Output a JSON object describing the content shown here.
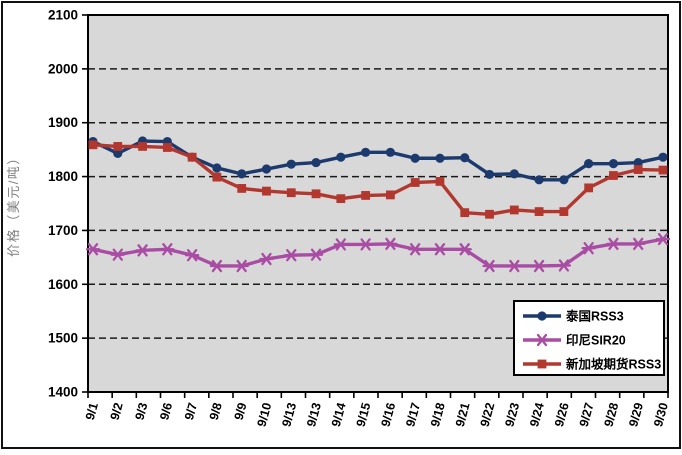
{
  "figure": {
    "background": "#ffffff",
    "plot_background": "#d8d8d8",
    "border_color": "#111111",
    "grid_color": "#1a1a1a",
    "axis_color": "#000000",
    "tick_label_color": "#000000",
    "ylabel_color": "#7f7f7f",
    "legend_background": "#ffffff",
    "legend_border_color": "#000000"
  },
  "chart_data": {
    "type": "line",
    "title": "",
    "xlabel": "",
    "ylabel": "价格（美元/吨）",
    "ylim": [
      1400,
      2100
    ],
    "ytick_interval": 100,
    "yticks": [
      2100,
      2000,
      1900,
      1800,
      1700,
      1600,
      1500,
      1400
    ],
    "grid": "horizontal-dashed",
    "legend_position": "inside-bottom-right",
    "categories": [
      "9/1",
      "9/2",
      "9/3",
      "9/6",
      "9/7",
      "9/8",
      "9/9",
      "9/10",
      "9/13",
      "9/13",
      "9/14",
      "9/15",
      "9/16",
      "9/17",
      "9/18",
      "9/21",
      "9/22",
      "9/23",
      "9/24",
      "9/26",
      "9/27",
      "9/28",
      "9/29",
      "9/30"
    ],
    "series": [
      {
        "name": "泰国RSS3",
        "color": "#1c3a6e",
        "marker": "circle",
        "values": [
          1865,
          1843,
          1866,
          1865,
          1836,
          1816,
          1805,
          1814,
          1823,
          1826,
          1836,
          1845,
          1845,
          1834,
          1834,
          1835,
          1804,
          1805,
          1794,
          1794,
          1824,
          1824,
          1826,
          1836
        ]
      },
      {
        "name": "印尼SIR20",
        "color": "#a94ca4",
        "marker": "asterisk",
        "values": [
          1665,
          1655,
          1663,
          1665,
          1654,
          1634,
          1634,
          1647,
          1654,
          1655,
          1674,
          1674,
          1675,
          1665,
          1665,
          1665,
          1634,
          1634,
          1634,
          1635,
          1667,
          1675,
          1675,
          1684
        ]
      },
      {
        "name": "新加坡期货RSS3",
        "color": "#b2382f",
        "marker": "square",
        "values": [
          1859,
          1856,
          1856,
          1854,
          1836,
          1799,
          1778,
          1773,
          1770,
          1768,
          1759,
          1765,
          1766,
          1789,
          1791,
          1733,
          1730,
          1738,
          1735,
          1735,
          1779,
          1802,
          1813,
          1812
        ]
      }
    ]
  }
}
